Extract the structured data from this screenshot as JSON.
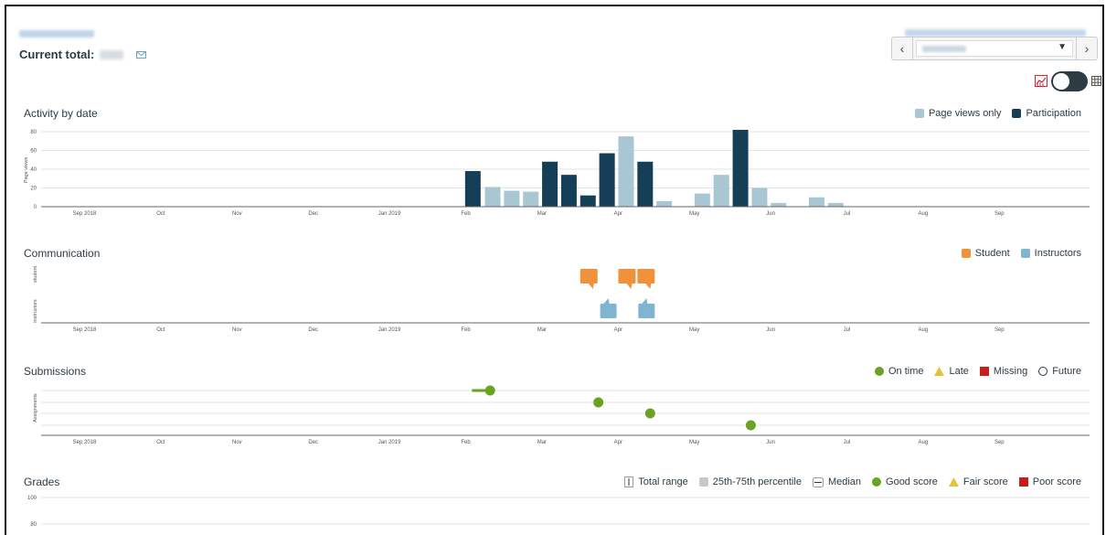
{
  "header": {
    "current_total_label": "Current total:"
  },
  "toggle": {
    "view": "chart"
  },
  "axis": {
    "months": [
      "Sep 2018",
      "Oct",
      "Nov",
      "Dec",
      "Jan 2019",
      "Feb",
      "Mar",
      "Apr",
      "May",
      "Jun",
      "Jul",
      "Aug",
      "Sep"
    ],
    "month_positions": [
      0,
      1,
      2,
      3,
      4,
      5,
      6,
      7,
      8,
      9,
      10,
      11,
      12
    ]
  },
  "activity": {
    "title": "Activity by date",
    "ylabel": "Page views",
    "legend": [
      {
        "label": "Page views only",
        "color": "#a9c6d3"
      },
      {
        "label": "Participation",
        "color": "#143f56"
      }
    ],
    "chart_data": {
      "type": "bar",
      "ylim": [
        0,
        80
      ],
      "yticks": [
        0,
        20,
        40,
        60,
        80
      ],
      "bars": [
        {
          "x": 4.98,
          "value": 38,
          "series": "Participation"
        },
        {
          "x": 5.24,
          "value": 21,
          "series": "Page views only"
        },
        {
          "x": 5.49,
          "value": 17,
          "series": "Page views only"
        },
        {
          "x": 5.74,
          "value": 16,
          "series": "Page views only"
        },
        {
          "x": 5.99,
          "value": 48,
          "series": "Participation"
        },
        {
          "x": 6.24,
          "value": 34,
          "series": "Participation"
        },
        {
          "x": 6.49,
          "value": 12,
          "series": "Participation"
        },
        {
          "x": 6.74,
          "value": 57,
          "series": "Participation"
        },
        {
          "x": 6.99,
          "value": 75,
          "series": "Page views only"
        },
        {
          "x": 7.24,
          "value": 48,
          "series": "Participation"
        },
        {
          "x": 7.49,
          "value": 6,
          "series": "Page views only"
        },
        {
          "x": 7.99,
          "value": 14,
          "series": "Page views only"
        },
        {
          "x": 8.24,
          "value": 34,
          "series": "Page views only"
        },
        {
          "x": 8.49,
          "value": 82,
          "series": "Participation"
        },
        {
          "x": 8.74,
          "value": 20,
          "series": "Page views only"
        },
        {
          "x": 8.99,
          "value": 4,
          "series": "Page views only"
        },
        {
          "x": 9.49,
          "value": 10,
          "series": "Page views only"
        },
        {
          "x": 9.74,
          "value": 4,
          "series": "Page views only"
        }
      ]
    }
  },
  "communication": {
    "title": "Communication",
    "rows": [
      "student",
      "instructors"
    ],
    "legend": [
      {
        "label": "Student",
        "color": "#f0923b"
      },
      {
        "label": "Instructors",
        "color": "#7fb5d1"
      }
    ],
    "chart_data": {
      "type": "scatter",
      "student": [
        6.49,
        6.99,
        7.24
      ],
      "instructors": [
        6.74,
        7.24
      ]
    }
  },
  "submissions": {
    "title": "Submissions",
    "ylabel": "Assignments",
    "legend": [
      {
        "label": "On time",
        "color": "#6aa222",
        "shape": "circle"
      },
      {
        "label": "Late",
        "color": "#e8c13b",
        "shape": "triangle"
      },
      {
        "label": "Missing",
        "color": "#c91c1c",
        "shape": "square"
      },
      {
        "label": "Future",
        "color": "#2d3b45",
        "shape": "ring"
      }
    ],
    "chart_data": {
      "type": "scatter",
      "points": [
        {
          "row": 0,
          "x": 5.32,
          "due_from": 5.07,
          "status": "On time"
        },
        {
          "row": 1,
          "x": 6.74,
          "status": "On time"
        },
        {
          "row": 2,
          "x": 7.42,
          "status": "On time"
        },
        {
          "row": 3,
          "x": 8.74,
          "status": "On time"
        }
      ]
    }
  },
  "grades": {
    "title": "Grades",
    "legend": [
      {
        "label": "Total range",
        "shape": "range"
      },
      {
        "label": "25th-75th percentile",
        "shape": "box",
        "color": "#c7c7c7"
      },
      {
        "label": "Median",
        "shape": "median"
      },
      {
        "label": "Good score",
        "shape": "circle",
        "color": "#6aa222"
      },
      {
        "label": "Fair score",
        "shape": "triangle",
        "color": "#e8c13b"
      },
      {
        "label": "Poor score",
        "shape": "square",
        "color": "#c91c1c"
      }
    ],
    "chart_data": {
      "type": "scatter",
      "yticks": [
        100,
        80
      ],
      "ylim": [
        0,
        100
      ]
    }
  }
}
